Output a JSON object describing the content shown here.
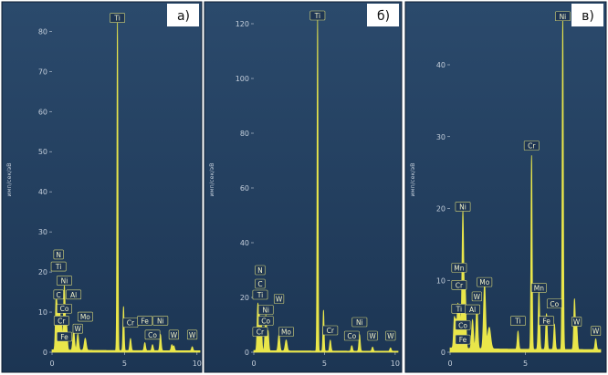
{
  "panels": [
    {
      "id": "a",
      "panel_label": "а)",
      "y_axis_label": "имп/сек/эВ",
      "chart_data": {
        "type": "line",
        "x_ticks": [
          0,
          5,
          10
        ],
        "y_ticks": [
          0,
          10,
          20,
          30,
          40,
          50,
          60,
          70,
          80
        ],
        "xlim": [
          0,
          10.2
        ],
        "ylim": [
          0,
          86
        ],
        "grid": false,
        "peaks": [
          {
            "x": 0.28,
            "y": 13,
            "w": 0.05
          },
          {
            "x": 0.39,
            "y": 9,
            "w": 0.05
          },
          {
            "x": 0.52,
            "y": 10,
            "w": 0.05
          },
          {
            "x": 0.65,
            "y": 6,
            "w": 0.05
          },
          {
            "x": 0.85,
            "y": 16,
            "w": 0.06
          },
          {
            "x": 1.01,
            "y": 6,
            "w": 0.05
          },
          {
            "x": 1.49,
            "y": 5,
            "w": 0.06
          },
          {
            "x": 1.78,
            "y": 4,
            "w": 0.06
          },
          {
            "x": 2.29,
            "y": 3,
            "w": 0.07
          },
          {
            "x": 4.51,
            "y": 82,
            "w": 0.035
          },
          {
            "x": 4.93,
            "y": 11,
            "w": 0.04
          },
          {
            "x": 5.41,
            "y": 3,
            "w": 0.05
          },
          {
            "x": 6.4,
            "y": 2,
            "w": 0.05
          },
          {
            "x": 6.93,
            "y": 1.5,
            "w": 0.05
          },
          {
            "x": 7.48,
            "y": 4,
            "w": 0.05
          },
          {
            "x": 8.26,
            "y": 1.5,
            "w": 0.05
          },
          {
            "x": 8.4,
            "y": 1.2,
            "w": 0.05
          },
          {
            "x": 9.67,
            "y": 1,
            "w": 0.05
          }
        ],
        "element_labels": [
          {
            "text": "Ti",
            "x": 4.51,
            "y": 82
          },
          {
            "text": "N",
            "x": 0.45,
            "y": 23
          },
          {
            "text": "Ti",
            "x": 0.45,
            "y": 20
          },
          {
            "text": "Ni",
            "x": 0.85,
            "y": 16.5
          },
          {
            "text": "C",
            "x": 0.45,
            "y": 13
          },
          {
            "text": "Al",
            "x": 1.49,
            "y": 13
          },
          {
            "text": "Co",
            "x": 0.85,
            "y": 9.5
          },
          {
            "text": "Mo",
            "x": 2.29,
            "y": 7.5
          },
          {
            "text": "Cr",
            "x": 0.65,
            "y": 6.5
          },
          {
            "text": "W",
            "x": 1.78,
            "y": 4.5
          },
          {
            "text": "Fe",
            "x": 0.85,
            "y": 2.5
          },
          {
            "text": "Cr",
            "x": 5.41,
            "y": 6
          },
          {
            "text": "Fe",
            "x": 6.4,
            "y": 6.5
          },
          {
            "text": "Ni",
            "x": 7.48,
            "y": 6.5
          },
          {
            "text": "Co",
            "x": 6.93,
            "y": 3
          },
          {
            "text": "W",
            "x": 8.4,
            "y": 3
          },
          {
            "text": "W",
            "x": 9.67,
            "y": 3
          }
        ]
      }
    },
    {
      "id": "b",
      "panel_label": "б)",
      "y_axis_label": "имп/сек/эВ",
      "chart_data": {
        "type": "line",
        "x_ticks": [
          0,
          5,
          10
        ],
        "y_ticks": [
          0,
          20,
          40,
          60,
          80,
          100,
          120
        ],
        "xlim": [
          0,
          10.2
        ],
        "ylim": [
          0,
          126
        ],
        "grid": false,
        "peaks": [
          {
            "x": 0.28,
            "y": 16,
            "w": 0.05
          },
          {
            "x": 0.39,
            "y": 12,
            "w": 0.05
          },
          {
            "x": 0.52,
            "y": 11,
            "w": 0.05
          },
          {
            "x": 0.85,
            "y": 13,
            "w": 0.06
          },
          {
            "x": 1.01,
            "y": 7,
            "w": 0.05
          },
          {
            "x": 1.78,
            "y": 6,
            "w": 0.06
          },
          {
            "x": 2.29,
            "y": 4,
            "w": 0.07
          },
          {
            "x": 4.51,
            "y": 121,
            "w": 0.035
          },
          {
            "x": 4.93,
            "y": 15,
            "w": 0.04
          },
          {
            "x": 5.41,
            "y": 4,
            "w": 0.05
          },
          {
            "x": 6.93,
            "y": 2,
            "w": 0.05
          },
          {
            "x": 7.48,
            "y": 6,
            "w": 0.05
          },
          {
            "x": 8.4,
            "y": 1.5,
            "w": 0.05
          },
          {
            "x": 9.67,
            "y": 1.2,
            "w": 0.05
          }
        ],
        "element_labels": [
          {
            "text": "Ti",
            "x": 4.51,
            "y": 121
          },
          {
            "text": "N",
            "x": 0.45,
            "y": 28
          },
          {
            "text": "C",
            "x": 0.45,
            "y": 23
          },
          {
            "text": "Ti",
            "x": 0.45,
            "y": 19
          },
          {
            "text": "W",
            "x": 1.78,
            "y": 17.5
          },
          {
            "text": "Ni",
            "x": 0.85,
            "y": 13.5
          },
          {
            "text": "Co",
            "x": 0.85,
            "y": 9.5
          },
          {
            "text": "Cr",
            "x": 0.45,
            "y": 5.5
          },
          {
            "text": "Mo",
            "x": 2.29,
            "y": 5.5
          },
          {
            "text": "Cr",
            "x": 5.41,
            "y": 6
          },
          {
            "text": "Ni",
            "x": 7.48,
            "y": 9
          },
          {
            "text": "Co",
            "x": 6.93,
            "y": 4
          },
          {
            "text": "W",
            "x": 8.4,
            "y": 4
          },
          {
            "text": "W",
            "x": 9.67,
            "y": 4
          }
        ]
      }
    },
    {
      "id": "c",
      "panel_label": "в)",
      "y_axis_label": "имп/сек/эВ",
      "chart_data": {
        "type": "line",
        "x_ticks": [
          0,
          5
        ],
        "y_ticks": [
          0,
          10,
          20,
          30,
          40
        ],
        "xlim": [
          0,
          10
        ],
        "ylim": [
          0,
          48
        ],
        "grid": false,
        "peaks": [
          {
            "x": 0.28,
            "y": 4,
            "w": 0.05
          },
          {
            "x": 0.39,
            "y": 3.5,
            "w": 0.05
          },
          {
            "x": 0.52,
            "y": 6,
            "w": 0.05
          },
          {
            "x": 0.65,
            "y": 5,
            "w": 0.05
          },
          {
            "x": 0.85,
            "y": 19,
            "w": 0.06
          },
          {
            "x": 1.01,
            "y": 8,
            "w": 0.05
          },
          {
            "x": 1.49,
            "y": 4,
            "w": 0.06
          },
          {
            "x": 1.78,
            "y": 6,
            "w": 0.06
          },
          {
            "x": 2.29,
            "y": 9,
            "w": 0.07
          },
          {
            "x": 2.6,
            "y": 3,
            "w": 0.1
          },
          {
            "x": 4.51,
            "y": 2.5,
            "w": 0.05
          },
          {
            "x": 5.41,
            "y": 27,
            "w": 0.04
          },
          {
            "x": 5.9,
            "y": 8,
            "w": 0.05
          },
          {
            "x": 6.4,
            "y": 5,
            "w": 0.05
          },
          {
            "x": 6.93,
            "y": 3.5,
            "w": 0.05
          },
          {
            "x": 7.48,
            "y": 46,
            "w": 0.04
          },
          {
            "x": 8.26,
            "y": 7,
            "w": 0.05
          },
          {
            "x": 8.4,
            "y": 3.5,
            "w": 0.05
          },
          {
            "x": 9.67,
            "y": 1.5,
            "w": 0.05
          }
        ],
        "element_labels": [
          {
            "text": "Ni",
            "x": 7.48,
            "y": 46
          },
          {
            "text": "Cr",
            "x": 5.41,
            "y": 28
          },
          {
            "text": "Ni",
            "x": 0.85,
            "y": 19.5
          },
          {
            "text": "Mn",
            "x": 0.6,
            "y": 11
          },
          {
            "text": "Mo",
            "x": 2.29,
            "y": 9
          },
          {
            "text": "Cr",
            "x": 0.6,
            "y": 8.6
          },
          {
            "text": "W",
            "x": 1.78,
            "y": 7
          },
          {
            "text": "Ti",
            "x": 0.6,
            "y": 5.3
          },
          {
            "text": "Al",
            "x": 1.49,
            "y": 5.2
          },
          {
            "text": "Mn",
            "x": 5.9,
            "y": 8.2
          },
          {
            "text": "Co",
            "x": 6.93,
            "y": 6
          },
          {
            "text": "Fe",
            "x": 6.4,
            "y": 3.6
          },
          {
            "text": "Ti",
            "x": 4.51,
            "y": 3.6
          },
          {
            "text": "Co",
            "x": 0.85,
            "y": 3
          },
          {
            "text": "Fe",
            "x": 0.85,
            "y": 1
          },
          {
            "text": "W",
            "x": 8.4,
            "y": 3.5
          },
          {
            "text": "W",
            "x": 9.67,
            "y": 2.2
          }
        ]
      }
    }
  ],
  "colors": {
    "background_top": "#2b4a6c",
    "background_bottom": "#1c3553",
    "spectrum": "#e9e64a",
    "axis_text": "#c5cfdb",
    "label_box": "#d8d87a",
    "panel_label_bg": "#ffffff",
    "panel_label_text": "#111111"
  }
}
